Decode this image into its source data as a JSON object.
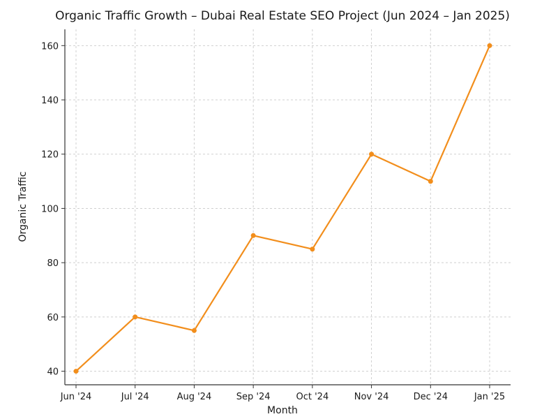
{
  "chart_data": {
    "type": "line",
    "title": "Organic Traffic Growth – Dubai Real Estate SEO Project (Jun 2024 – Jan 2025)",
    "xlabel": "Month",
    "ylabel": "Organic Traffic",
    "categories": [
      "Jun '24",
      "Jul '24",
      "Aug '24",
      "Sep '24",
      "Oct '24",
      "Nov '24",
      "Dec '24",
      "Jan '25"
    ],
    "series": [
      {
        "values": [
          40,
          60,
          55,
          90,
          85,
          120,
          110,
          160
        ],
        "color": "#f28e1c",
        "marker": "circle"
      }
    ],
    "ylim": [
      35,
      166
    ],
    "yticks": [
      40,
      60,
      80,
      100,
      120,
      140,
      160
    ],
    "grid": true,
    "legend": "none"
  }
}
